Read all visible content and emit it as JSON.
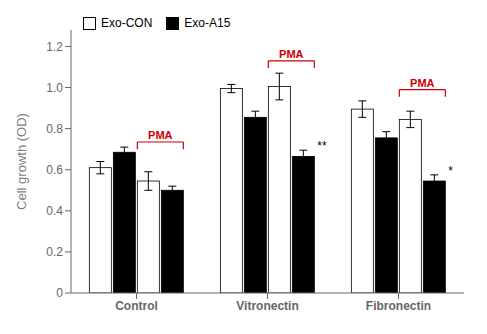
{
  "chart_data": {
    "type": "bar",
    "categories": [
      "Control",
      "Vitronectin",
      "Fibronectin"
    ],
    "series": [
      {
        "name": "Exo-CON",
        "color": "white",
        "values": [
          0.61,
          0.995,
          0.895
        ],
        "errors": [
          0.03,
          0.02,
          0.04
        ]
      },
      {
        "name": "Exo-A15",
        "color": "black",
        "values": [
          0.685,
          0.855,
          0.755
        ],
        "errors": [
          0.025,
          0.03,
          0.03
        ]
      },
      {
        "name": "Exo-CON",
        "color": "white",
        "values": [
          0.545,
          1.005,
          0.845
        ],
        "errors": [
          0.045,
          0.065,
          0.04
        ]
      },
      {
        "name": "Exo-A15",
        "color": "black",
        "values": [
          0.5,
          0.665,
          0.545
        ],
        "errors": [
          0.02,
          0.03,
          0.03
        ]
      }
    ],
    "ylabel": "Cell growth (OD)",
    "ylim": [
      0,
      1.28
    ],
    "yticks": [
      0,
      0.2,
      0.4,
      0.6,
      0.8,
      {
        "value": 1.0,
        "label": "1.0"
      },
      1.2
    ],
    "grid": false,
    "legend": "upper left",
    "annotations": [
      {
        "text": "PMA",
        "category": "Control",
        "y": 0.735,
        "color": "#cc0000",
        "bracket": true
      },
      {
        "text": "PMA",
        "category": "Vitronectin",
        "y": 1.13,
        "color": "#cc0000",
        "bracket": true
      },
      {
        "text": "PMA",
        "category": "Fibronectin",
        "y": 0.99,
        "color": "#cc0000",
        "bracket": true
      },
      {
        "text": "**",
        "category": "Vitronectin",
        "y": 0.71
      },
      {
        "text": "*",
        "category": "Fibronectin",
        "y": 0.59
      }
    ]
  }
}
